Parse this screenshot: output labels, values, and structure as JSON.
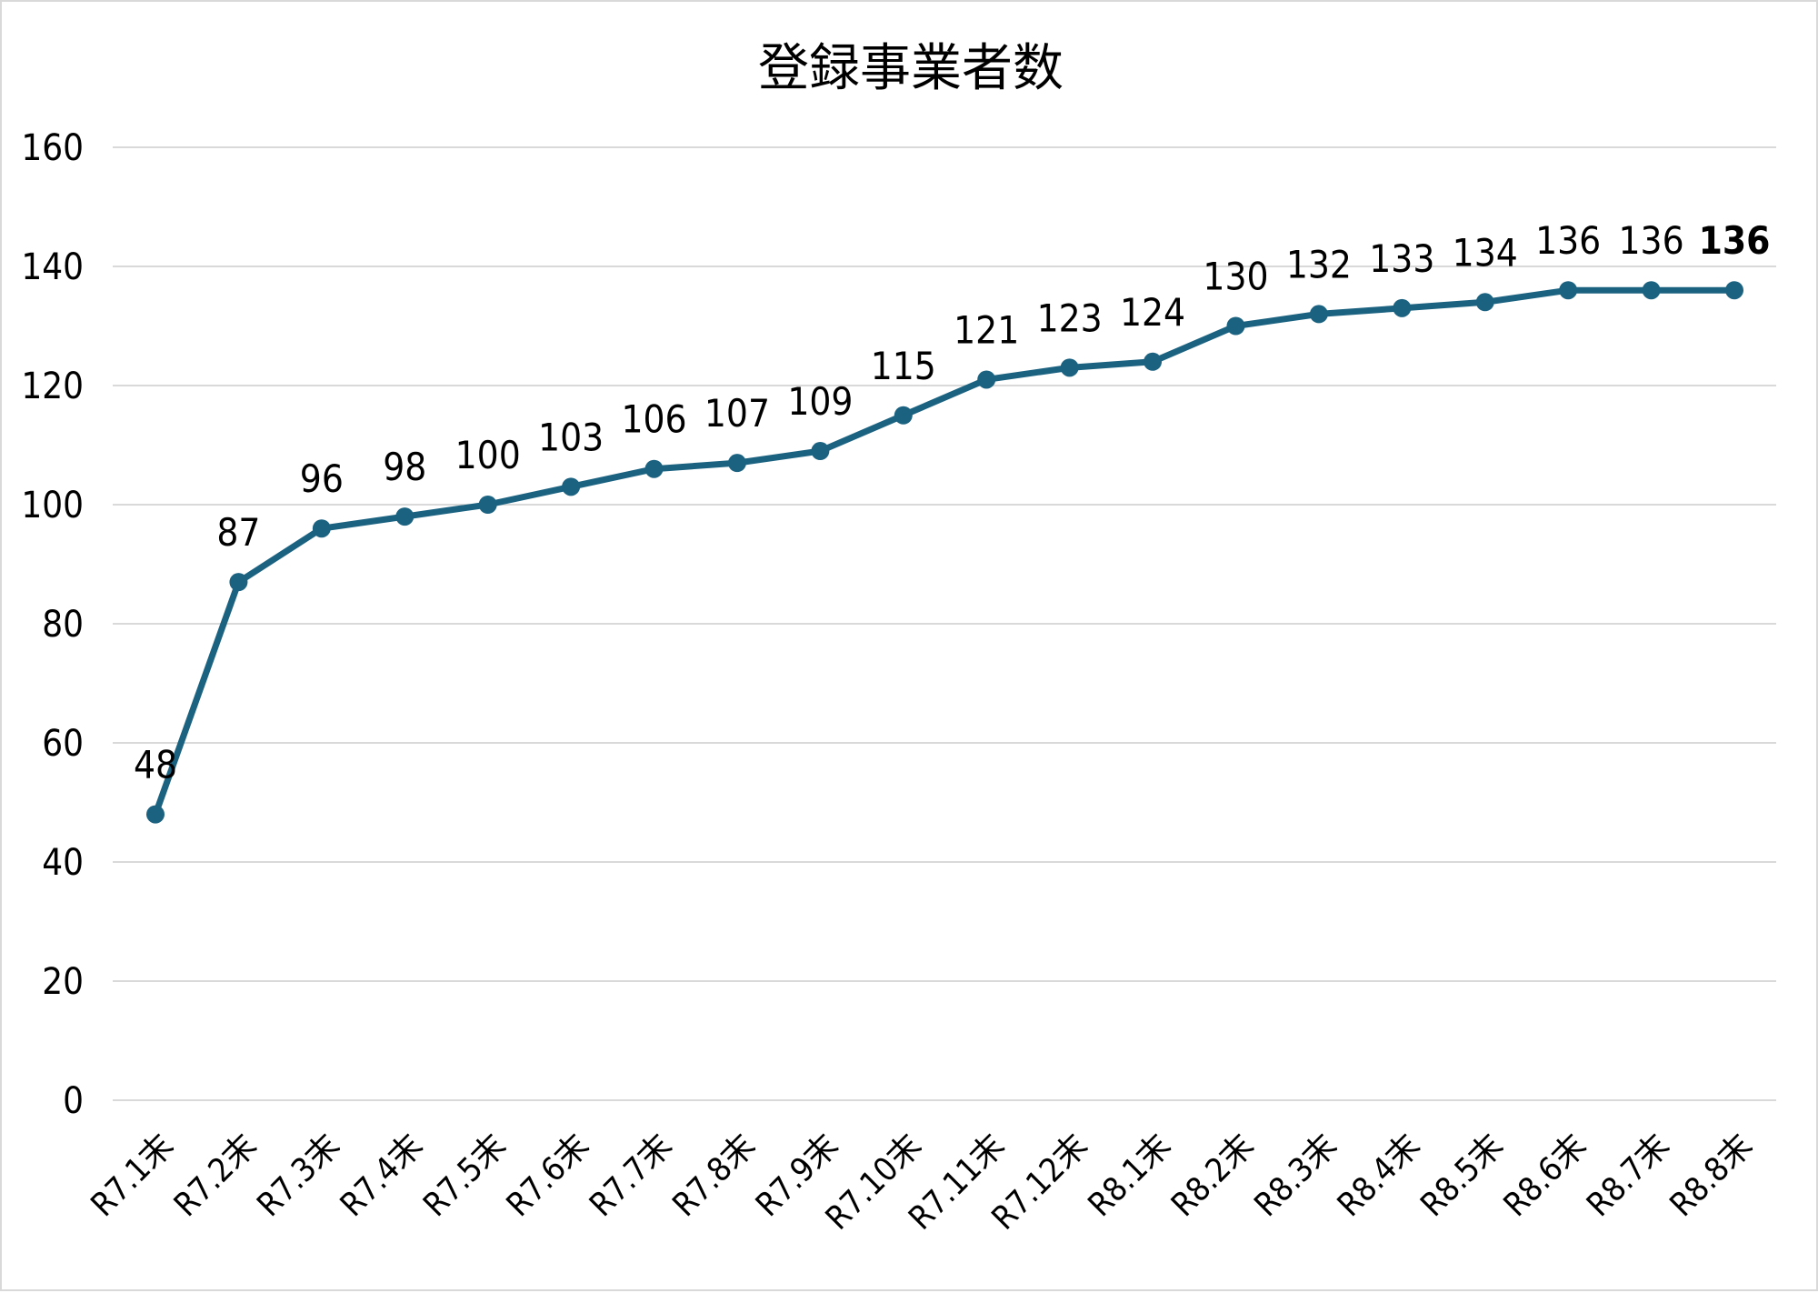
{
  "chart_data": {
    "type": "line",
    "title": "登録事業者数",
    "xlabel": "",
    "ylabel": "",
    "ylim": [
      0,
      160
    ],
    "yticks": [
      "0",
      "20",
      "40",
      "60",
      "80",
      "100",
      "120",
      "140",
      "160"
    ],
    "grid": true,
    "legend": "none",
    "categories": [
      "R7.1末",
      "R7.2末",
      "R7.3末",
      "R7.4末",
      "R7.5末",
      "R7.6末",
      "R7.7末",
      "R7.8末",
      "R7.9末",
      "R7.10末",
      "R7.11末",
      "R7.12末",
      "R8.1末",
      "R8.2末",
      "R8.3末",
      "R8.4末",
      "R8.5末",
      "R8.6末",
      "R8.7末",
      "R8.8末"
    ],
    "series": [
      {
        "values": [
          48,
          87,
          96,
          98,
          100,
          103,
          106,
          107,
          109,
          115,
          121,
          123,
          124,
          130,
          132,
          133,
          134,
          136,
          136,
          136
        ]
      }
    ],
    "bold_last_label": true,
    "colors": {
      "line": "#1b6281",
      "grid": "#d9d9d9",
      "text": "#000000",
      "border": "#d9d9d9"
    }
  }
}
